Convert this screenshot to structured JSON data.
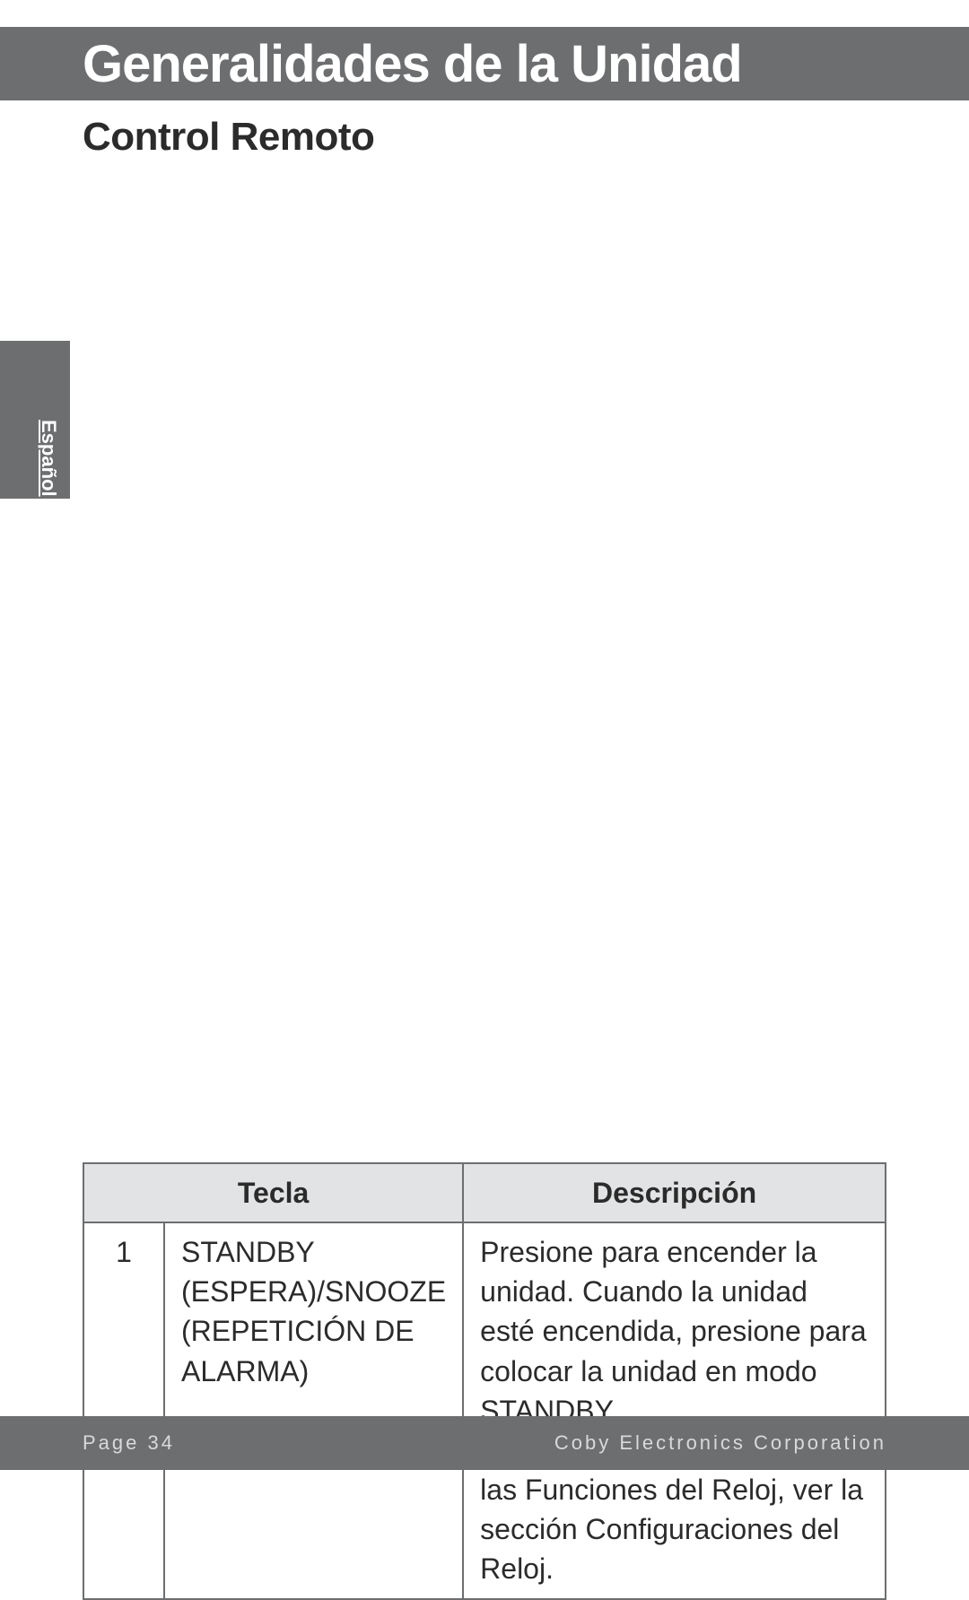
{
  "header": {
    "title": "Generalidades de la Unidad",
    "bg_color": "#6c6e70",
    "text_color": "#ffffff",
    "fontsize": 58
  },
  "subheading": {
    "text": "Control Remoto",
    "fontsize": 44,
    "color": "#2b2b2b"
  },
  "side_tab": {
    "label": "Español",
    "bg_color": "#6c6e70",
    "text_color": "#ffffff"
  },
  "table": {
    "columns": [
      "Tecla",
      "Descripción"
    ],
    "header_bg": "#e2e3e4",
    "border_color": "#6c6e70",
    "fontsize": 32,
    "rows": [
      {
        "num": "1",
        "key": "STANDBY (ESPERA)/SNOOZE (REPETICIÓN DE ALARMA)",
        "desc": "Presione para encender la unidad. Cuando la unidad esté encendida, presione para colocar la unidad en modo STANDBY .\nPara más información sobre las Funciones del Reloj, ver la sección Configuraciones del Reloj."
      }
    ]
  },
  "footer": {
    "page_label": "Page 34",
    "company": "Coby Electronics Corporation",
    "bg_color": "#6c6e70",
    "text_color": "#d8d9da"
  }
}
